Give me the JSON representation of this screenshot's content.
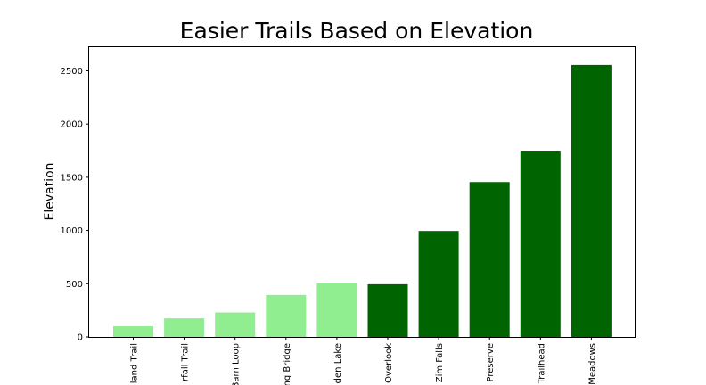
{
  "chart_data": {
    "type": "bar",
    "title": "Easier Trails Based on Elevation",
    "xlabel": "",
    "ylabel": "Elevation",
    "categories": [
      "Island Trail",
      "Waterfall Trail",
      "Barn Loop",
      "Swing Bridge",
      "Garden Lake",
      "Overlook",
      "Zim Falls",
      "Preserve",
      "Trailhead",
      "Meadows"
    ],
    "tick_labels_visible": [
      "land Trail",
      "rfall Trail",
      "Barn Loop",
      "ng Bridge",
      "den Lake",
      "Overlook",
      "Zim Falls",
      "Preserve",
      "Trailhead",
      "Meadows"
    ],
    "values": [
      100,
      175,
      230,
      395,
      505,
      495,
      995,
      1455,
      1750,
      2555
    ],
    "bar_colors": [
      "#90ee90",
      "#90ee90",
      "#90ee90",
      "#90ee90",
      "#90ee90",
      "#006400",
      "#006400",
      "#006400",
      "#006400",
      "#006400"
    ],
    "ylim": [
      0,
      2730
    ],
    "yticks": [
      0,
      500,
      1000,
      1500,
      2000,
      2500
    ],
    "grid": false,
    "legend": "none"
  }
}
